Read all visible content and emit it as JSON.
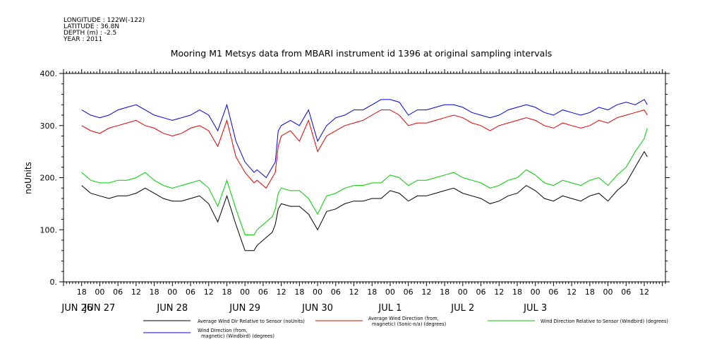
{
  "header": {
    "longitude": "LONGITUDE : 122W(-122)",
    "latitude": "LATITUDE : 36.8N",
    "depth": "DEPTH (m) : -2.5",
    "year": "YEAR : 2011"
  },
  "chart_data": {
    "type": "line",
    "title": "Mooring M1 Metsys data from MBARI instrument id 1396 at original sampling intervals",
    "ylabel": "noUnits",
    "xlabel": "",
    "ylim": [
      0,
      400
    ],
    "yticks": [
      "0.",
      "100.",
      "200.",
      "300.",
      "400."
    ],
    "xlim_hours": [
      0,
      187
    ],
    "hour_ticks": [
      "18",
      "00",
      "06",
      "12",
      "18",
      "00",
      "06",
      "12",
      "18",
      "00",
      "06",
      "12",
      "18",
      "00",
      "06",
      "12",
      "18",
      "00",
      "06",
      "12",
      "18",
      "00",
      "06",
      "12",
      "18",
      "00",
      "06",
      "12",
      "18",
      "00",
      "06",
      "12"
    ],
    "day_labels": [
      "JUN 26",
      "JUN 27",
      "JUN 28",
      "JUN 29",
      "JUN 30",
      "JUL  1",
      "JUL  2",
      "JUL  3"
    ],
    "grid": false,
    "legend_position": "bottom",
    "x_hours": [
      0,
      3,
      6,
      9,
      12,
      15,
      18,
      21,
      24,
      27,
      30,
      33,
      36,
      39,
      42,
      45,
      48,
      51,
      54,
      57,
      58,
      60,
      61,
      62,
      63,
      64,
      65,
      66,
      69,
      72,
      75,
      78,
      81,
      84,
      87,
      90,
      93,
      96,
      99,
      102,
      105,
      108,
      111,
      114,
      117,
      120,
      123,
      126,
      129,
      132,
      135,
      138,
      141,
      144,
      147,
      150,
      153,
      156,
      159,
      162,
      165,
      168,
      171,
      174,
      177,
      180,
      183,
      186,
      187
    ],
    "series": [
      {
        "name": "Average Wind Dir Relative to Sensor (noUnits)",
        "color": "#000000",
        "values": [
          185,
          170,
          165,
          160,
          165,
          165,
          170,
          180,
          170,
          160,
          155,
          155,
          160,
          165,
          150,
          115,
          165,
          110,
          60,
          60,
          70,
          80,
          85,
          90,
          95,
          110,
          140,
          150,
          145,
          145,
          130,
          100,
          135,
          140,
          150,
          155,
          155,
          160,
          160,
          175,
          170,
          155,
          165,
          165,
          170,
          175,
          180,
          170,
          165,
          160,
          150,
          155,
          165,
          170,
          185,
          175,
          160,
          155,
          165,
          160,
          155,
          165,
          170,
          155,
          175,
          190,
          220,
          250,
          240
        ]
      },
      {
        "name": "Average Wind Direction (from, magnetic) (Sonic-n/a) (degrees)",
        "color": "#e00000",
        "values": [
          300,
          290,
          285,
          295,
          300,
          305,
          310,
          300,
          295,
          285,
          280,
          285,
          295,
          300,
          290,
          260,
          310,
          240,
          210,
          190,
          195,
          185,
          180,
          190,
          200,
          210,
          260,
          280,
          290,
          270,
          310,
          250,
          280,
          290,
          300,
          305,
          310,
          320,
          330,
          330,
          320,
          300,
          305,
          305,
          310,
          315,
          320,
          315,
          305,
          300,
          290,
          300,
          305,
          310,
          315,
          310,
          300,
          295,
          305,
          300,
          295,
          300,
          310,
          305,
          315,
          320,
          325,
          330,
          320
        ]
      },
      {
        "name": "Wind Direction Relative to Sensor (Windbird) (degrees)",
        "color": "#00cc00",
        "values": [
          210,
          195,
          190,
          190,
          195,
          195,
          200,
          210,
          195,
          185,
          180,
          185,
          190,
          195,
          180,
          145,
          195,
          140,
          90,
          90,
          100,
          110,
          115,
          120,
          125,
          140,
          170,
          180,
          175,
          175,
          160,
          130,
          165,
          170,
          180,
          185,
          185,
          190,
          190,
          205,
          200,
          185,
          195,
          195,
          200,
          205,
          210,
          200,
          195,
          190,
          180,
          185,
          195,
          200,
          215,
          205,
          190,
          185,
          195,
          190,
          185,
          195,
          200,
          185,
          205,
          220,
          250,
          275,
          295
        ]
      },
      {
        "name": "Wind Direction (from, magnetic) (Windbird) (degrees)",
        "color": "#0000e0",
        "values": [
          330,
          320,
          315,
          320,
          330,
          335,
          340,
          330,
          320,
          315,
          310,
          315,
          320,
          330,
          320,
          290,
          340,
          270,
          230,
          210,
          215,
          205,
          200,
          210,
          220,
          230,
          290,
          300,
          310,
          300,
          330,
          270,
          300,
          315,
          320,
          330,
          330,
          340,
          350,
          350,
          345,
          320,
          330,
          330,
          335,
          340,
          340,
          335,
          325,
          320,
          315,
          320,
          330,
          335,
          340,
          335,
          325,
          320,
          330,
          325,
          320,
          325,
          335,
          330,
          340,
          345,
          340,
          350,
          340
        ]
      }
    ]
  }
}
